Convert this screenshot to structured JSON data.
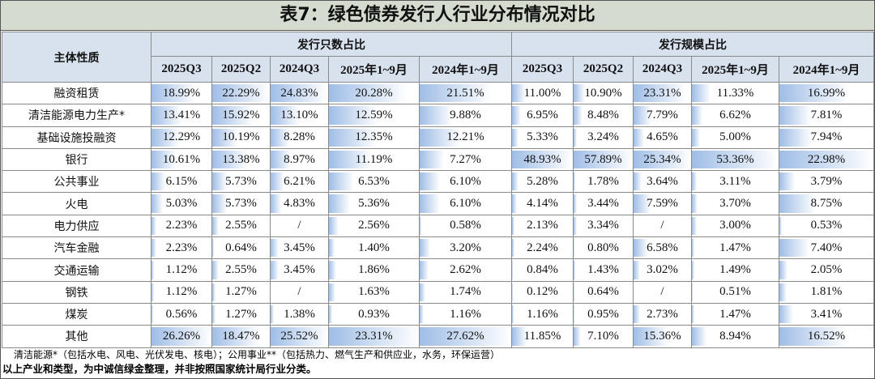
{
  "header": {
    "title": "表7：绿色债券发行人行业分布情况对比"
  },
  "table": {
    "row_header": "主体性质",
    "groups": [
      "发行只数占比",
      "发行规模占比"
    ],
    "columns": [
      "2025Q3",
      "2025Q2",
      "2024Q3",
      "2025年1~9月",
      "2024年1~9月",
      "2025Q3",
      "2025Q2",
      "2024Q3",
      "2025年1~9月",
      "2024年1~9月"
    ],
    "rows": [
      [
        "融资租赁",
        "18.99%",
        "22.29%",
        "24.83%",
        "20.28%",
        "21.51%",
        "11.00%",
        "10.90%",
        "23.31%",
        "11.33%",
        "16.99%"
      ],
      [
        "清洁能源电力生产*",
        "13.41%",
        "15.92%",
        "13.10%",
        "12.59%",
        "9.88%",
        "6.95%",
        "8.48%",
        "7.79%",
        "6.62%",
        "7.81%"
      ],
      [
        "基础设施投融资",
        "12.29%",
        "10.19%",
        "8.28%",
        "12.35%",
        "12.21%",
        "5.33%",
        "3.24%",
        "4.65%",
        "5.00%",
        "7.94%"
      ],
      [
        "银行",
        "10.61%",
        "13.38%",
        "8.97%",
        "11.19%",
        "7.27%",
        "48.93%",
        "57.89%",
        "25.34%",
        "53.36%",
        "22.98%"
      ],
      [
        "公共事业",
        "6.15%",
        "5.73%",
        "6.21%",
        "6.53%",
        "6.10%",
        "5.28%",
        "1.78%",
        "3.64%",
        "3.11%",
        "3.79%"
      ],
      [
        "火电",
        "5.03%",
        "5.73%",
        "4.83%",
        "5.36%",
        "6.10%",
        "4.14%",
        "3.44%",
        "7.59%",
        "3.70%",
        "8.75%"
      ],
      [
        "电力供应",
        "2.23%",
        "2.55%",
        "/",
        "2.56%",
        "0.58%",
        "2.13%",
        "3.34%",
        "/",
        "3.00%",
        "0.53%"
      ],
      [
        "汽车金融",
        "2.23%",
        "0.64%",
        "3.45%",
        "1.40%",
        "3.20%",
        "2.24%",
        "0.80%",
        "6.58%",
        "1.47%",
        "7.40%"
      ],
      [
        "交通运输",
        "1.12%",
        "2.55%",
        "3.45%",
        "1.86%",
        "2.62%",
        "0.84%",
        "1.43%",
        "3.02%",
        "1.49%",
        "2.05%"
      ],
      [
        "钢铁",
        "1.12%",
        "1.27%",
        "/",
        "1.63%",
        "1.74%",
        "0.12%",
        "0.64%",
        "/",
        "0.51%",
        "1.81%"
      ],
      [
        "煤炭",
        "0.56%",
        "1.27%",
        "1.38%",
        "0.93%",
        "1.16%",
        "1.16%",
        "0.95%",
        "2.73%",
        "1.47%",
        "3.41%"
      ],
      [
        "其他",
        "26.26%",
        "18.47%",
        "25.52%",
        "23.31%",
        "27.62%",
        "11.85%",
        "7.10%",
        "15.36%",
        "8.94%",
        "16.52%"
      ]
    ]
  },
  "notes": [
    "清洁能源*（包括水电、风电、光伏发电、核电）；公用事业**（包括热力、燃气生产和供应业，水务，环保运营）",
    "以上产业和类型，为中诚信绿金整理，并非按照国家统计局行业分类。"
  ]
}
